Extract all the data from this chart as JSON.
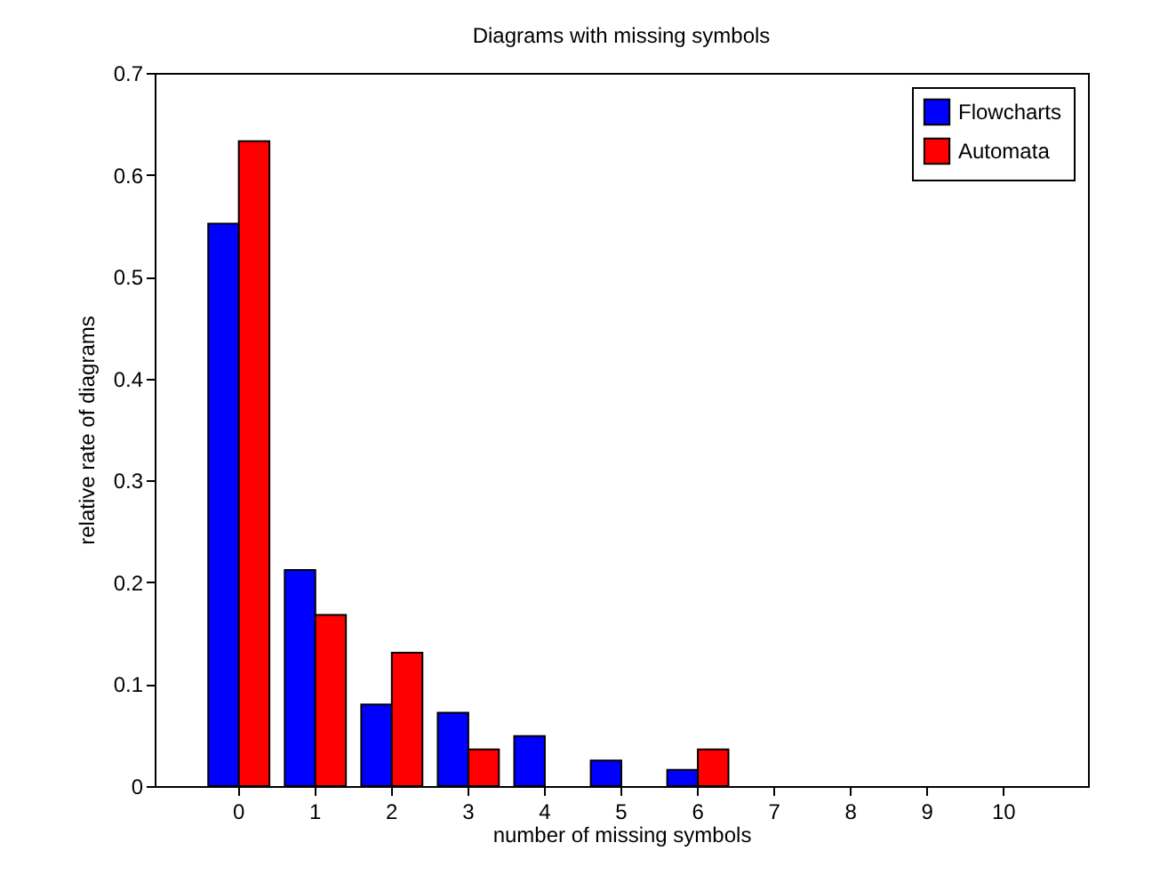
{
  "chart_data": {
    "type": "bar",
    "title": "Diagrams with missing symbols",
    "xlabel": "number of missing symbols",
    "ylabel": "relative rate of diagrams",
    "categories": [
      "0",
      "1",
      "2",
      "3",
      "4",
      "5",
      "6",
      "7",
      "8",
      "9",
      "10"
    ],
    "series": [
      {
        "name": "Flowcharts",
        "color": "#0000ff",
        "values": [
          0.552,
          0.212,
          0.08,
          0.072,
          0.049,
          0.025,
          0.016,
          null,
          null,
          null,
          null
        ]
      },
      {
        "name": "Automata",
        "color": "#ff0000",
        "values": [
          0.633,
          0.168,
          0.131,
          0.036,
          null,
          null,
          0.036,
          null,
          null,
          null,
          null
        ]
      }
    ],
    "ylim": [
      0,
      0.7
    ],
    "yticks": [
      0,
      0.1,
      0.2,
      0.3,
      0.4,
      0.5,
      0.6,
      0.7
    ],
    "grid": false,
    "legend": "top right"
  }
}
